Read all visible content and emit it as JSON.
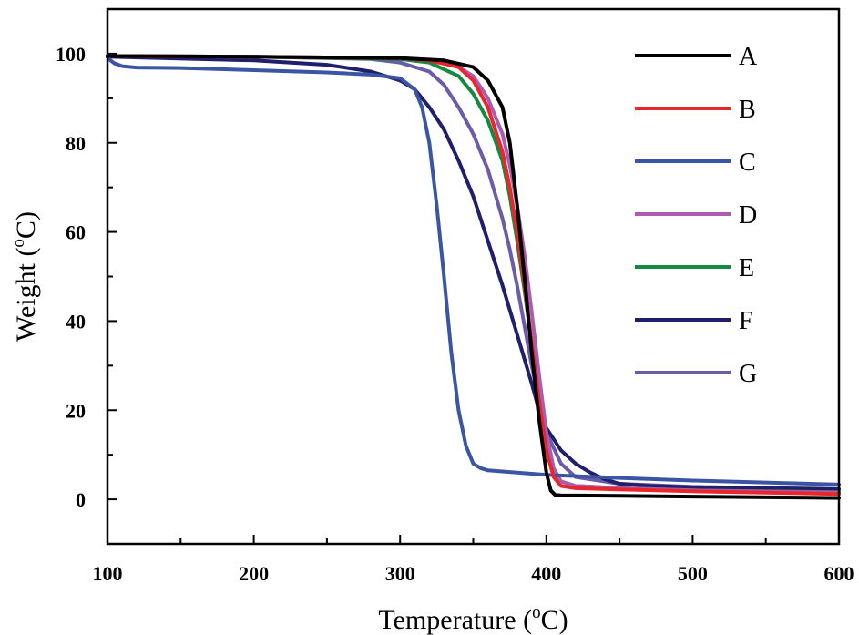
{
  "chart_data": {
    "type": "line",
    "title": "",
    "xlabel": "Temperature (",
    "xlabel_sup": "o",
    "xlabel_suffix": "C)",
    "ylabel": "Weight (",
    "ylabel_sup": "o",
    "ylabel_suffix": "C)",
    "xlim": [
      100,
      600
    ],
    "ylim": [
      -10,
      110
    ],
    "xticks": [
      100,
      200,
      300,
      400,
      500,
      600
    ],
    "yticks": [
      0,
      20,
      40,
      60,
      80,
      100
    ],
    "legend_position": "top-right",
    "series": [
      {
        "name": "A",
        "color": "#000000",
        "x": [
          100,
          200,
          300,
          330,
          350,
          360,
          370,
          375,
          380,
          385,
          390,
          395,
          400,
          403,
          406,
          410,
          450,
          500,
          600
        ],
        "y": [
          99.5,
          99.3,
          99.0,
          98.5,
          97,
          94,
          88,
          80,
          66,
          50,
          33,
          18,
          6,
          2,
          1.0,
          0.9,
          0.8,
          0.6,
          0.3
        ]
      },
      {
        "name": "B",
        "color": "#e8262b",
        "x": [
          100,
          200,
          300,
          320,
          340,
          350,
          360,
          370,
          375,
          380,
          385,
          390,
          395,
          400,
          405,
          410,
          420,
          450,
          500,
          600
        ],
        "y": [
          99.5,
          99.3,
          99.0,
          98.5,
          97,
          94,
          88,
          78,
          70,
          60,
          48,
          35,
          22,
          11,
          5,
          3,
          2.5,
          2.2,
          1.8,
          1.2
        ]
      },
      {
        "name": "C",
        "color": "#3a55a4",
        "x": [
          100,
          102,
          105,
          110,
          120,
          150,
          200,
          250,
          280,
          300,
          310,
          315,
          320,
          325,
          330,
          335,
          340,
          345,
          350,
          355,
          360,
          380,
          400,
          450,
          500,
          600
        ],
        "y": [
          99.5,
          98.5,
          97.8,
          97.2,
          96.9,
          96.8,
          96.3,
          95.8,
          95.3,
          94.5,
          92,
          88,
          80,
          66,
          50,
          33,
          20,
          12,
          8,
          7,
          6.5,
          6,
          5.5,
          4.8,
          4.2,
          3.3
        ]
      },
      {
        "name": "D",
        "color": "#b05aaf",
        "x": [
          100,
          200,
          300,
          320,
          340,
          350,
          360,
          370,
          375,
          380,
          385,
          390,
          395,
          400,
          405,
          410,
          420,
          450,
          500,
          600
        ],
        "y": [
          99.5,
          99.3,
          99.0,
          98.6,
          97,
          95,
          90,
          82,
          75,
          66,
          55,
          42,
          28,
          15,
          7,
          4,
          3,
          2.5,
          2.0,
          1.5
        ]
      },
      {
        "name": "E",
        "color": "#138a3f",
        "x": [
          100,
          200,
          300,
          320,
          340,
          350,
          360,
          370,
          375,
          380,
          385,
          390,
          395,
          400,
          405,
          410,
          420,
          450,
          500,
          600
        ],
        "y": [
          99.5,
          99.3,
          98.8,
          98,
          95,
          91,
          85,
          76,
          68,
          58,
          47,
          35,
          23,
          12,
          6,
          4,
          3,
          2.5,
          2.0,
          1.6
        ]
      },
      {
        "name": "F",
        "color": "#1f1f6b",
        "x": [
          100,
          200,
          250,
          280,
          300,
          310,
          320,
          330,
          340,
          350,
          360,
          370,
          380,
          390,
          395,
          400,
          410,
          420,
          430,
          440,
          450,
          470,
          500,
          600
        ],
        "y": [
          99.3,
          98.5,
          97.5,
          96,
          94,
          92,
          88,
          83,
          76,
          68,
          58,
          48,
          37,
          26,
          20,
          16,
          11,
          8,
          6,
          4.5,
          3.5,
          3.0,
          2.7,
          2.3
        ]
      },
      {
        "name": "G",
        "color": "#6b5ba8",
        "x": [
          100,
          200,
          280,
          300,
          320,
          330,
          340,
          350,
          360,
          370,
          375,
          380,
          385,
          390,
          395,
          400,
          410,
          420,
          450,
          500,
          600
        ],
        "y": [
          99.5,
          99.3,
          98.8,
          98,
          96,
          93,
          88,
          82,
          74,
          63,
          56,
          48,
          39,
          30,
          22,
          15,
          8,
          5,
          3.5,
          2.8,
          2.2
        ]
      }
    ]
  }
}
